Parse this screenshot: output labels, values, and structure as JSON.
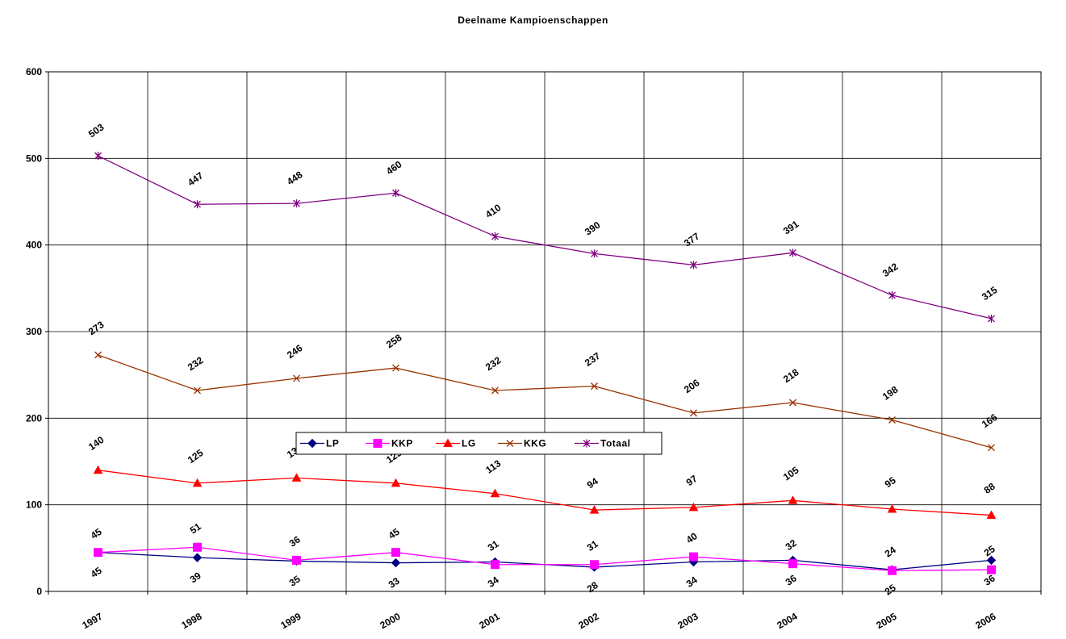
{
  "chart_data": {
    "type": "line",
    "title": "Deelname Kampioenschappen",
    "xlabel": "",
    "ylabel": "",
    "ylim": [
      0,
      600
    ],
    "yticks": [
      0,
      100,
      200,
      300,
      400,
      500,
      600
    ],
    "grid": true,
    "legend_position": "center-left",
    "categories": [
      "1997",
      "1998",
      "1999",
      "2000",
      "2001",
      "2002",
      "2003",
      "2004",
      "2005",
      "2006"
    ],
    "series": [
      {
        "name": "LP",
        "color": "#000080",
        "marker": "diamond",
        "values": [
          45,
          39,
          35,
          33,
          34,
          28,
          34,
          36,
          25,
          36
        ]
      },
      {
        "name": "KKP",
        "color": "#FF00FF",
        "marker": "square",
        "values": [
          45,
          51,
          36,
          45,
          31,
          31,
          40,
          32,
          24,
          25
        ]
      },
      {
        "name": "LG",
        "color": "#FF0000",
        "marker": "triangle",
        "values": [
          140,
          125,
          131,
          125,
          113,
          94,
          97,
          105,
          95,
          88
        ]
      },
      {
        "name": "KKG",
        "color": "#993300",
        "marker": "x",
        "values": [
          273,
          232,
          246,
          258,
          232,
          237,
          206,
          218,
          198,
          166
        ]
      },
      {
        "name": "Totaal",
        "color": "#800080",
        "marker": "star",
        "values": [
          503,
          447,
          448,
          460,
          410,
          390,
          377,
          391,
          342,
          315
        ]
      }
    ]
  }
}
